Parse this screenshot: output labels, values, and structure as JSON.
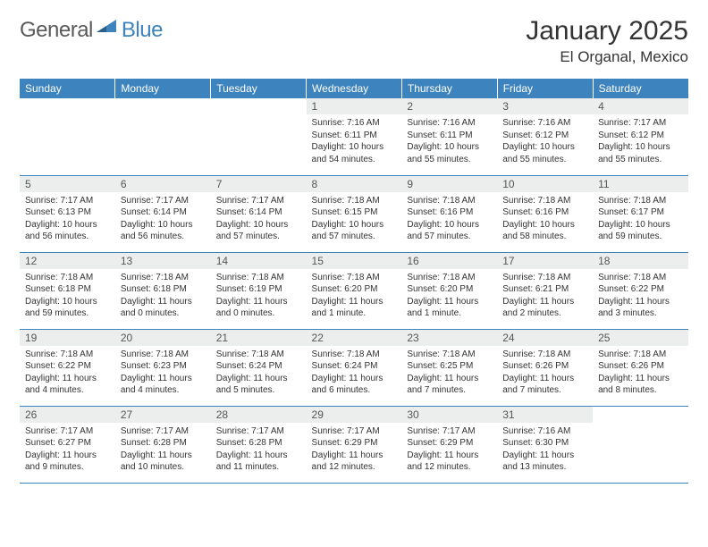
{
  "logo": {
    "word1": "General",
    "word2": "Blue",
    "accent": "#3d83bd",
    "gray": "#5a5a5a"
  },
  "title": "January 2025",
  "location": "El Organal, Mexico",
  "header_bg": "#3d83bd",
  "daynum_bg": "#eceded",
  "row_border": "#3d83bd",
  "weekdays": [
    "Sunday",
    "Monday",
    "Tuesday",
    "Wednesday",
    "Thursday",
    "Friday",
    "Saturday"
  ],
  "weeks": [
    [
      null,
      null,
      null,
      {
        "n": "1",
        "sr": "7:16 AM",
        "ss": "6:11 PM",
        "dl": "10 hours and 54 minutes."
      },
      {
        "n": "2",
        "sr": "7:16 AM",
        "ss": "6:11 PM",
        "dl": "10 hours and 55 minutes."
      },
      {
        "n": "3",
        "sr": "7:16 AM",
        "ss": "6:12 PM",
        "dl": "10 hours and 55 minutes."
      },
      {
        "n": "4",
        "sr": "7:17 AM",
        "ss": "6:12 PM",
        "dl": "10 hours and 55 minutes."
      }
    ],
    [
      {
        "n": "5",
        "sr": "7:17 AM",
        "ss": "6:13 PM",
        "dl": "10 hours and 56 minutes."
      },
      {
        "n": "6",
        "sr": "7:17 AM",
        "ss": "6:14 PM",
        "dl": "10 hours and 56 minutes."
      },
      {
        "n": "7",
        "sr": "7:17 AM",
        "ss": "6:14 PM",
        "dl": "10 hours and 57 minutes."
      },
      {
        "n": "8",
        "sr": "7:18 AM",
        "ss": "6:15 PM",
        "dl": "10 hours and 57 minutes."
      },
      {
        "n": "9",
        "sr": "7:18 AM",
        "ss": "6:16 PM",
        "dl": "10 hours and 57 minutes."
      },
      {
        "n": "10",
        "sr": "7:18 AM",
        "ss": "6:16 PM",
        "dl": "10 hours and 58 minutes."
      },
      {
        "n": "11",
        "sr": "7:18 AM",
        "ss": "6:17 PM",
        "dl": "10 hours and 59 minutes."
      }
    ],
    [
      {
        "n": "12",
        "sr": "7:18 AM",
        "ss": "6:18 PM",
        "dl": "10 hours and 59 minutes."
      },
      {
        "n": "13",
        "sr": "7:18 AM",
        "ss": "6:18 PM",
        "dl": "11 hours and 0 minutes."
      },
      {
        "n": "14",
        "sr": "7:18 AM",
        "ss": "6:19 PM",
        "dl": "11 hours and 0 minutes."
      },
      {
        "n": "15",
        "sr": "7:18 AM",
        "ss": "6:20 PM",
        "dl": "11 hours and 1 minute."
      },
      {
        "n": "16",
        "sr": "7:18 AM",
        "ss": "6:20 PM",
        "dl": "11 hours and 1 minute."
      },
      {
        "n": "17",
        "sr": "7:18 AM",
        "ss": "6:21 PM",
        "dl": "11 hours and 2 minutes."
      },
      {
        "n": "18",
        "sr": "7:18 AM",
        "ss": "6:22 PM",
        "dl": "11 hours and 3 minutes."
      }
    ],
    [
      {
        "n": "19",
        "sr": "7:18 AM",
        "ss": "6:22 PM",
        "dl": "11 hours and 4 minutes."
      },
      {
        "n": "20",
        "sr": "7:18 AM",
        "ss": "6:23 PM",
        "dl": "11 hours and 4 minutes."
      },
      {
        "n": "21",
        "sr": "7:18 AM",
        "ss": "6:24 PM",
        "dl": "11 hours and 5 minutes."
      },
      {
        "n": "22",
        "sr": "7:18 AM",
        "ss": "6:24 PM",
        "dl": "11 hours and 6 minutes."
      },
      {
        "n": "23",
        "sr": "7:18 AM",
        "ss": "6:25 PM",
        "dl": "11 hours and 7 minutes."
      },
      {
        "n": "24",
        "sr": "7:18 AM",
        "ss": "6:26 PM",
        "dl": "11 hours and 7 minutes."
      },
      {
        "n": "25",
        "sr": "7:18 AM",
        "ss": "6:26 PM",
        "dl": "11 hours and 8 minutes."
      }
    ],
    [
      {
        "n": "26",
        "sr": "7:17 AM",
        "ss": "6:27 PM",
        "dl": "11 hours and 9 minutes."
      },
      {
        "n": "27",
        "sr": "7:17 AM",
        "ss": "6:28 PM",
        "dl": "11 hours and 10 minutes."
      },
      {
        "n": "28",
        "sr": "7:17 AM",
        "ss": "6:28 PM",
        "dl": "11 hours and 11 minutes."
      },
      {
        "n": "29",
        "sr": "7:17 AM",
        "ss": "6:29 PM",
        "dl": "11 hours and 12 minutes."
      },
      {
        "n": "30",
        "sr": "7:17 AM",
        "ss": "6:29 PM",
        "dl": "11 hours and 12 minutes."
      },
      {
        "n": "31",
        "sr": "7:16 AM",
        "ss": "6:30 PM",
        "dl": "11 hours and 13 minutes."
      },
      null
    ]
  ],
  "labels": {
    "sunrise": "Sunrise: ",
    "sunset": "Sunset: ",
    "daylight": "Daylight: "
  }
}
